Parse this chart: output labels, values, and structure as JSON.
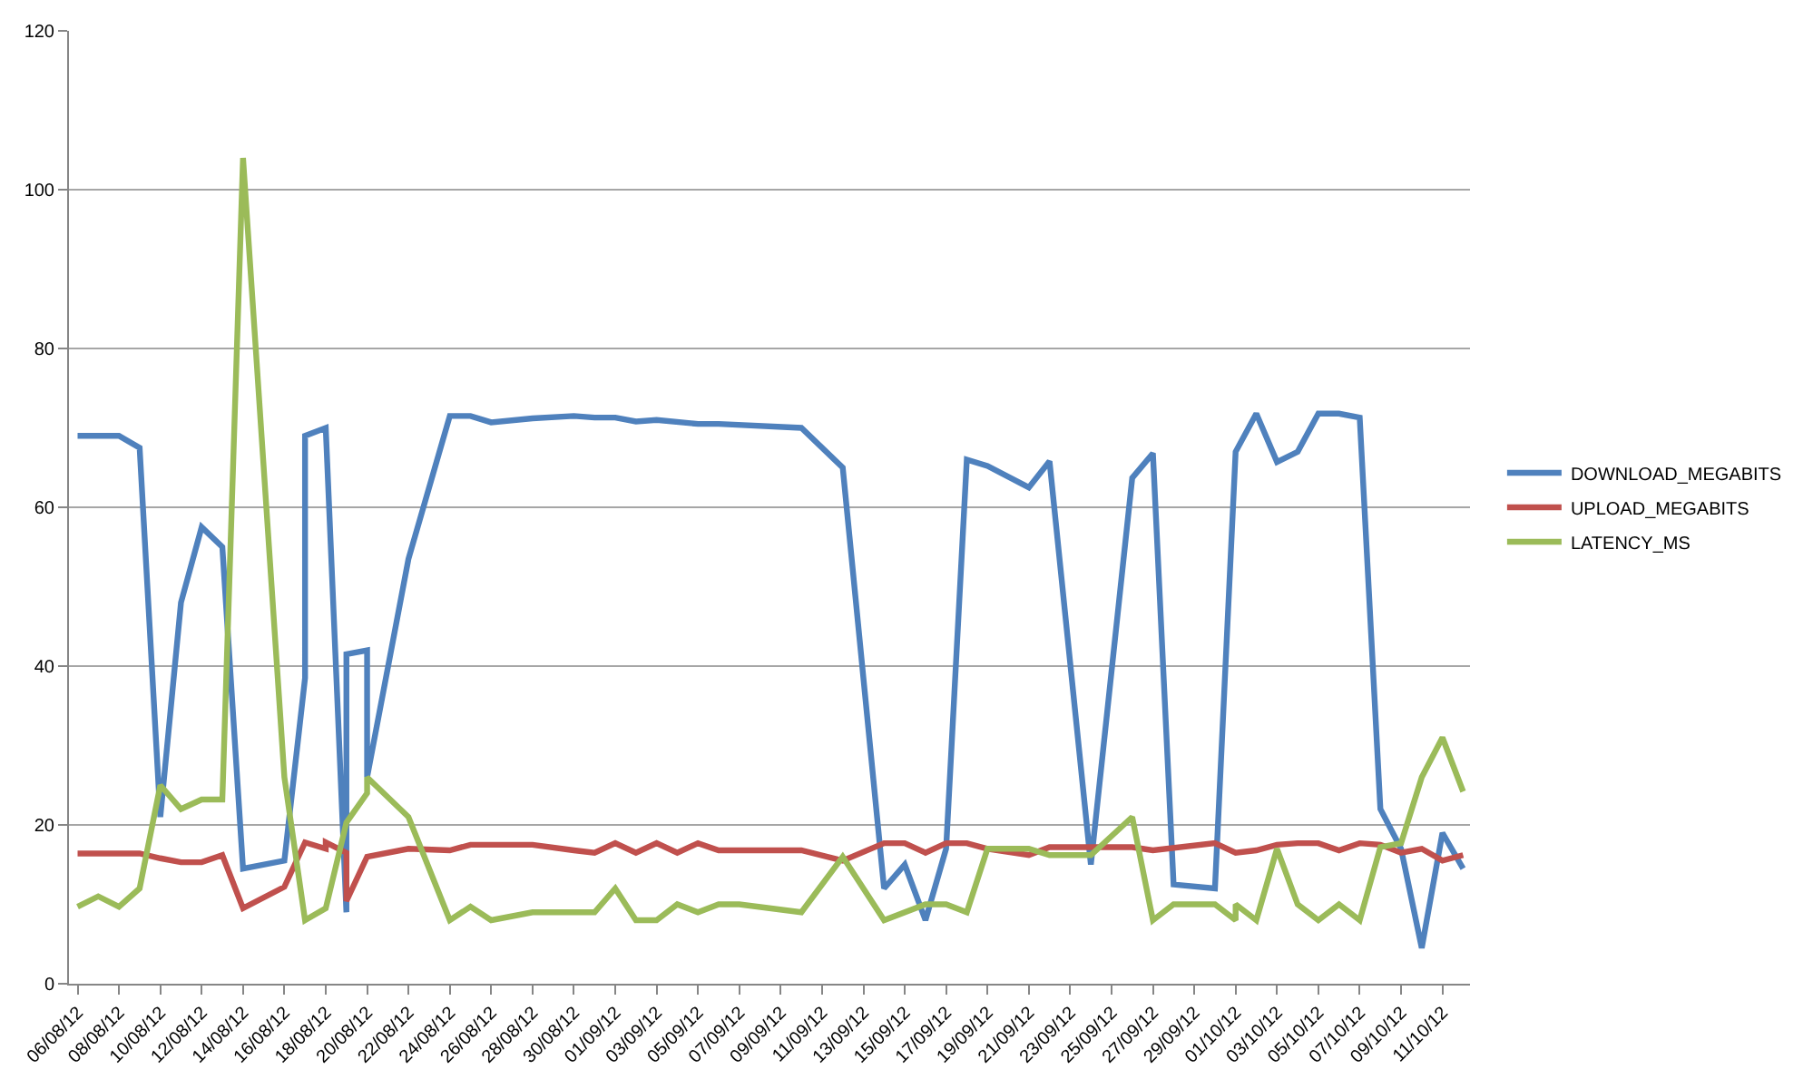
{
  "chart_data": {
    "type": "line",
    "legend": "right",
    "grid": "y",
    "marker": "none",
    "line_style": "solid",
    "xlim": [
      "--08-05T14:00",
      "--10-12T08:00"
    ],
    "xticks": [
      {
        "value": "--08-06",
        "label": "06/08/12"
      },
      {
        "value": "--08-08",
        "label": "08/08/12"
      },
      {
        "value": "--08-10",
        "label": "10/08/12"
      },
      {
        "value": "--08-12",
        "label": "12/08/12"
      },
      {
        "value": "--08-14",
        "label": "14/08/12"
      },
      {
        "value": "--08-16",
        "label": "16/08/12"
      },
      {
        "value": "--08-18",
        "label": "18/08/12"
      },
      {
        "value": "--08-20",
        "label": "20/08/12"
      },
      {
        "value": "--08-22",
        "label": "22/08/12"
      },
      {
        "value": "--08-24",
        "label": "24/08/12"
      },
      {
        "value": "--08-26",
        "label": "26/08/12"
      },
      {
        "value": "--08-28",
        "label": "28/08/12"
      },
      {
        "value": "--08-30",
        "label": "30/08/12"
      },
      {
        "value": "--09-01",
        "label": "01/09/12"
      },
      {
        "value": "--09-03",
        "label": "03/09/12"
      },
      {
        "value": "--09-05",
        "label": "05/09/12"
      },
      {
        "value": "--09-07",
        "label": "07/09/12"
      },
      {
        "value": "--09-09",
        "label": "09/09/12"
      },
      {
        "value": "--09-11",
        "label": "11/09/12"
      },
      {
        "value": "--09-13",
        "label": "13/09/12"
      },
      {
        "value": "--09-15",
        "label": "15/09/12"
      },
      {
        "value": "--09-17",
        "label": "17/09/12"
      },
      {
        "value": "--09-19",
        "label": "19/09/12"
      },
      {
        "value": "--09-21",
        "label": "21/09/12"
      },
      {
        "value": "--09-23",
        "label": "23/09/12"
      },
      {
        "value": "--09-25",
        "label": "25/09/12"
      },
      {
        "value": "--09-27",
        "label": "27/09/12"
      },
      {
        "value": "--09-29",
        "label": "29/09/12"
      },
      {
        "value": "--10-01",
        "label": "01/10/12"
      },
      {
        "value": "--10-03",
        "label": "03/10/12"
      },
      {
        "value": "--10-05",
        "label": "05/10/12"
      },
      {
        "value": "--10-07",
        "label": "07/10/12"
      },
      {
        "value": "--10-09",
        "label": "09/10/12"
      },
      {
        "value": "--10-11",
        "label": "11/10/12"
      }
    ],
    "ylim": [
      0,
      120
    ],
    "yticks": [
      0,
      20,
      40,
      60,
      80,
      100,
      120
    ],
    "series": [
      {
        "name": "DOWNLOAD_MEGABITS",
        "color": "#4f81bd",
        "x": [
          "--08-06",
          "--08-08",
          "--08-09",
          "--08-10",
          "--08-11",
          "--08-12",
          "--08-13",
          "--08-14",
          "--08-16",
          "--08-17",
          "--08-17",
          "--08-18",
          "--08-19",
          "--08-19",
          "--08-20",
          "--08-20",
          "--08-22",
          "--08-24",
          "--08-25",
          "--08-26",
          "--08-28",
          "--08-30",
          "--08-31",
          "--09-01",
          "--09-02",
          "--09-03",
          "--09-05",
          "--09-06",
          "--09-10",
          "--09-12",
          "--09-14",
          "--09-15",
          "--09-16",
          "--09-17",
          "--09-18",
          "--09-19",
          "--09-21",
          "--09-22",
          "--09-24",
          "--09-26",
          "--09-27",
          "--09-28",
          "--09-30",
          "--10-01",
          "--10-02",
          "--10-03",
          "--10-04",
          "--10-05",
          "--10-06",
          "--10-07",
          "--10-08",
          "--10-09",
          "--10-10",
          "--10-11",
          "--10-12"
        ],
        "values": [
          69,
          69,
          67.5,
          21,
          48,
          57.5,
          55,
          14.5,
          15.5,
          38.5,
          69,
          70,
          9,
          41.5,
          42,
          26,
          53.5,
          71.5,
          71.5,
          70.7,
          71.2,
          71.5,
          71.3,
          71.3,
          70.8,
          71,
          70.5,
          70.5,
          70,
          65,
          12,
          15,
          8,
          17,
          66,
          65.2,
          62.5,
          65.8,
          15,
          63.7,
          66.8,
          12.5,
          12,
          67,
          71.8,
          65.7,
          67,
          71.8,
          71.8,
          71.3,
          22,
          17,
          4.5,
          19,
          14.5
        ]
      },
      {
        "name": "UPLOAD_MEGABITS",
        "color": "#c0504d",
        "x": [
          "--08-06",
          "--08-07",
          "--08-08",
          "--08-09",
          "--08-10",
          "--08-11",
          "--08-12",
          "--08-13",
          "--08-14",
          "--08-16",
          "--08-17",
          "--08-18",
          "--08-18",
          "--08-19",
          "--08-19",
          "--08-20",
          "--08-22",
          "--08-24",
          "--08-25",
          "--08-26",
          "--08-28",
          "--08-30",
          "--08-31",
          "--09-01",
          "--09-02",
          "--09-03",
          "--09-04",
          "--09-05",
          "--09-06",
          "--09-10",
          "--09-12",
          "--09-14",
          "--09-15",
          "--09-16",
          "--09-17",
          "--09-18",
          "--09-19",
          "--09-21",
          "--09-22",
          "--09-24",
          "--09-26",
          "--09-27",
          "--09-30",
          "--10-01",
          "--10-02",
          "--10-03",
          "--10-04",
          "--10-05",
          "--10-06",
          "--10-07",
          "--10-08",
          "--10-09",
          "--10-10",
          "--10-11",
          "--10-12"
        ],
        "values": [
          16.4,
          16.4,
          16.4,
          16.4,
          15.8,
          15.3,
          15.3,
          16.2,
          9.5,
          12.2,
          17.8,
          17,
          17.8,
          16.5,
          10.4,
          16,
          17,
          16.8,
          17.5,
          17.5,
          17.5,
          16.8,
          16.5,
          17.7,
          16.5,
          17.7,
          16.5,
          17.7,
          16.8,
          16.8,
          15.5,
          17.7,
          17.7,
          16.5,
          17.7,
          17.7,
          17,
          16.2,
          17.2,
          17.2,
          17.2,
          16.8,
          17.7,
          16.5,
          16.8,
          17.5,
          17.7,
          17.7,
          16.8,
          17.7,
          17.5,
          16.5,
          17,
          15.5,
          16.2
        ]
      },
      {
        "name": "LATENCY_MS",
        "color": "#9bbb59",
        "x": [
          "--08-06",
          "--08-07",
          "--08-08",
          "--08-09",
          "--08-10",
          "--08-11",
          "--08-12",
          "--08-13",
          "--08-14",
          "--08-16",
          "--08-17",
          "--08-18",
          "--08-19",
          "--08-20",
          "--08-20",
          "--08-22",
          "--08-24",
          "--08-25",
          "--08-26",
          "--08-28",
          "--08-30",
          "--08-31",
          "--09-01",
          "--09-02",
          "--09-03",
          "--09-04",
          "--09-05",
          "--09-06",
          "--09-07",
          "--09-10",
          "--09-12",
          "--09-14",
          "--09-16",
          "--09-17",
          "--09-18",
          "--09-19",
          "--09-21",
          "--09-22",
          "--09-24",
          "--09-26",
          "--09-27",
          "--09-28",
          "--09-30",
          "--10-01",
          "--10-01",
          "--10-02",
          "--10-03",
          "--10-04",
          "--10-05",
          "--10-06",
          "--10-07",
          "--10-08",
          "--10-09",
          "--10-10",
          "--10-11",
          "--10-12"
        ],
        "values": [
          9.7,
          11,
          9.7,
          12,
          25,
          22,
          23.2,
          23.2,
          104,
          26,
          8,
          9.5,
          20.3,
          24,
          26,
          21,
          8,
          9.7,
          8,
          9,
          9,
          9,
          12,
          8,
          8,
          10,
          9,
          10,
          10,
          9,
          16,
          8,
          10,
          10,
          9,
          17,
          17,
          16.2,
          16.2,
          21,
          8,
          10,
          10,
          8,
          10,
          8,
          17,
          10,
          8,
          10,
          8,
          17.2,
          17.7,
          26,
          31,
          24.2
        ]
      }
    ]
  }
}
